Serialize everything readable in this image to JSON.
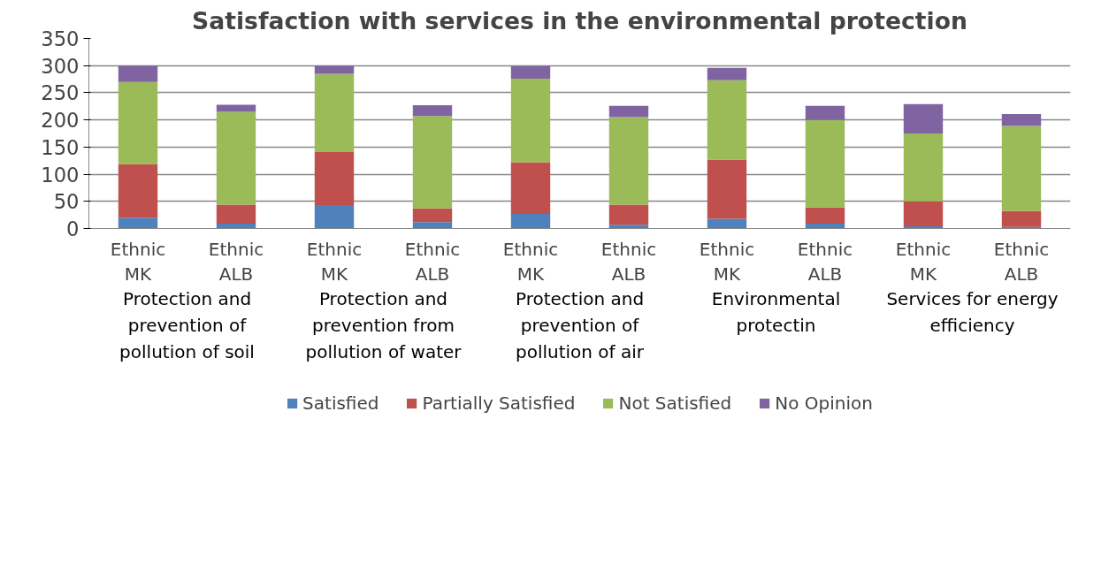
{
  "chart_data": {
    "type": "bar",
    "title": "Satisfaction with services in the environmental protection",
    "stacked": true,
    "categories": [
      "Ethnic MK",
      "Ethnic ALB",
      "Ethnic MK",
      "Ethnic ALB",
      "Ethnic MK",
      "Ethnic ALB",
      "Ethnic MK",
      "Ethnic ALB",
      "Ethnic MK",
      "Ethnic ALB"
    ],
    "annotations": [
      "Protection and prevention of pollution of soil",
      "Protection and prevention from pollution of water",
      "Protection and prevention of pollution of air",
      "Environmental protectin",
      "Services for energy efficiency"
    ],
    "series": [
      {
        "name": "Satisfied",
        "color": "#4f81bd",
        "values": [
          20,
          9,
          43,
          12,
          27,
          7,
          18,
          9,
          4,
          3
        ]
      },
      {
        "name": "Partially Satisfied",
        "color": "#c0504d",
        "values": [
          99,
          35,
          98,
          25,
          95,
          37,
          109,
          30,
          46,
          29
        ]
      },
      {
        "name": "Not Satisfied",
        "color": "#9bbb59",
        "values": [
          151,
          171,
          144,
          170,
          154,
          161,
          146,
          161,
          125,
          157
        ]
      },
      {
        "name": "No Opinion",
        "color": "#8064a2",
        "values": [
          30,
          13,
          15,
          20,
          23,
          21,
          23,
          26,
          54,
          22
        ]
      }
    ],
    "ylim": [
      0,
      350
    ],
    "yticks": [
      0,
      50,
      100,
      150,
      200,
      250,
      300,
      350
    ],
    "grid": "y",
    "legend": "bottom"
  }
}
